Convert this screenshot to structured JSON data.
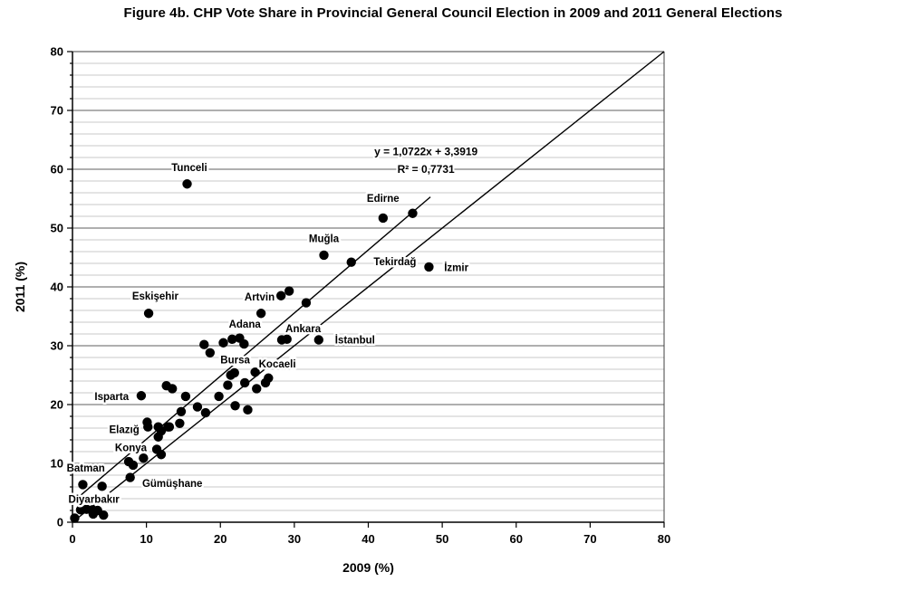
{
  "title": "Figure 4b. CHP Vote Share in Provincial General Council Election in 2009 and 2011 General Elections",
  "chart_data": {
    "type": "scatter",
    "title": "Figure 4b. CHP Vote Share in Provincial General Council Election in 2009 and 2011 General Elections",
    "xlabel": "2009 (%)",
    "ylabel": "2011 (%)",
    "xlim": [
      0,
      80
    ],
    "ylim": [
      0,
      80
    ],
    "x_ticks": [
      0,
      10,
      20,
      30,
      40,
      50,
      60,
      70,
      80
    ],
    "y_ticks": [
      0,
      10,
      20,
      30,
      40,
      50,
      60,
      70,
      80
    ],
    "minor_grid_step": 2,
    "major_grid_step": 10,
    "grid": "horizontal-only",
    "legend": "none",
    "point_color": "#000000",
    "trendline": {
      "equation_label": "y = 1,0722x + 3,3919",
      "r2_label": "R² = 0,7731",
      "slope": 1.0722,
      "intercept": 3.3919,
      "x_start": 0,
      "x_end": 48.4,
      "annotation_x": 47.8,
      "annotation_y_equation": 63.0,
      "annotation_y_r2": 60.0
    },
    "identity_line": {
      "x1": 0,
      "y1": 0,
      "x2": 80,
      "y2": 80
    },
    "labeled_points": [
      {
        "name": "Tunceli",
        "x": 15.5,
        "y": 57.5,
        "lx": 15.8,
        "ly": 60.3
      },
      {
        "name": "Edirne",
        "x": 42.0,
        "y": 51.7,
        "lx": 42.0,
        "ly": 55.1
      },
      {
        "name": "Muğla",
        "x": 34.0,
        "y": 45.4,
        "lx": 34.0,
        "ly": 48.2
      },
      {
        "name": "Tekirdağ",
        "x": 37.7,
        "y": 44.2,
        "lx": 43.6,
        "ly": 44.3
      },
      {
        "name": "İzmir",
        "x": 48.2,
        "y": 43.4,
        "lx": 51.9,
        "ly": 43.3
      },
      {
        "name": "Eskişehir",
        "x": 10.3,
        "y": 35.5,
        "lx": 11.2,
        "ly": 38.5
      },
      {
        "name": "Artvin",
        "x": 28.2,
        "y": 38.5,
        "lx": 25.3,
        "ly": 38.3
      },
      {
        "name": "Adana",
        "x": 22.6,
        "y": 31.3,
        "lx": 23.3,
        "ly": 33.7
      },
      {
        "name": "Ankara",
        "x": 29.0,
        "y": 31.1,
        "lx": 31.2,
        "ly": 32.9
      },
      {
        "name": "İstanbul",
        "x": 33.3,
        "y": 31.0,
        "lx": 38.2,
        "ly": 31.0
      },
      {
        "name": "Bursa",
        "x": 21.4,
        "y": 25.0,
        "lx": 22.0,
        "ly": 27.6
      },
      {
        "name": "Kocaeli",
        "x": 26.5,
        "y": 24.5,
        "lx": 27.7,
        "ly": 26.9
      },
      {
        "name": "Isparta",
        "x": 9.3,
        "y": 21.5,
        "lx": 5.3,
        "ly": 21.4
      },
      {
        "name": "Elazığ",
        "x": 10.2,
        "y": 16.2,
        "lx": 7.0,
        "ly": 15.8
      },
      {
        "name": "Konya",
        "x": 11.4,
        "y": 12.4,
        "lx": 7.9,
        "ly": 12.7
      },
      {
        "name": "Batman",
        "x": 1.4,
        "y": 6.4,
        "lx": 1.8,
        "ly": 9.2
      },
      {
        "name": "Gümüşhane",
        "x": 7.8,
        "y": 7.6,
        "lx": 13.5,
        "ly": 6.6
      },
      {
        "name": "Diyarbakır",
        "x": 1.9,
        "y": 2.2,
        "lx": 2.9,
        "ly": 3.9
      }
    ],
    "points": [
      [
        46.0,
        52.5
      ],
      [
        29.3,
        39.3
      ],
      [
        31.6,
        37.3
      ],
      [
        25.5,
        35.5
      ],
      [
        20.4,
        30.5
      ],
      [
        21.6,
        31.1
      ],
      [
        23.2,
        30.3
      ],
      [
        17.8,
        30.2
      ],
      [
        18.6,
        28.8
      ],
      [
        28.3,
        31.0
      ],
      [
        24.7,
        25.5
      ],
      [
        21.9,
        25.4
      ],
      [
        23.3,
        23.7
      ],
      [
        24.9,
        22.7
      ],
      [
        21.0,
        23.3
      ],
      [
        19.8,
        21.4
      ],
      [
        12.7,
        23.2
      ],
      [
        13.5,
        22.7
      ],
      [
        15.3,
        21.4
      ],
      [
        16.9,
        19.6
      ],
      [
        18.0,
        18.6
      ],
      [
        14.7,
        18.8
      ],
      [
        22.0,
        19.8
      ],
      [
        23.7,
        19.1
      ],
      [
        26.1,
        23.7
      ],
      [
        13.1,
        16.2
      ],
      [
        14.5,
        16.8
      ],
      [
        11.6,
        16.2
      ],
      [
        12.0,
        15.5
      ],
      [
        12.9,
        16.2
      ],
      [
        10.1,
        17.0
      ],
      [
        11.6,
        14.5
      ],
      [
        12.0,
        11.5
      ],
      [
        7.6,
        10.3
      ],
      [
        8.2,
        9.7
      ],
      [
        9.6,
        10.9
      ],
      [
        4.0,
        6.1
      ],
      [
        1.1,
        2.1
      ],
      [
        2.7,
        2.1
      ],
      [
        3.4,
        2.0
      ],
      [
        2.8,
        1.4
      ],
      [
        4.2,
        1.2
      ],
      [
        0.3,
        0.7
      ]
    ]
  }
}
